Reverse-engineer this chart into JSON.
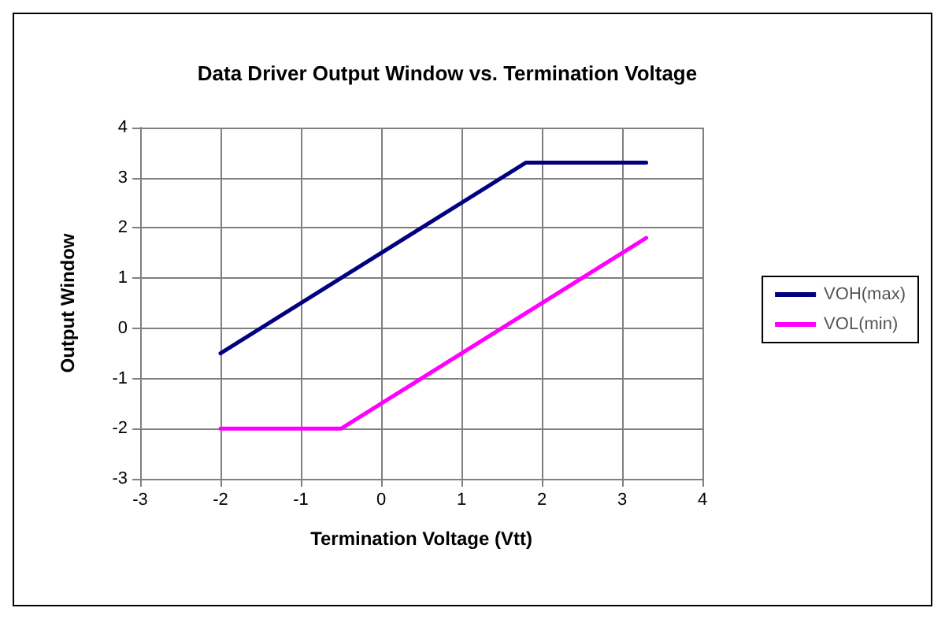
{
  "chart_data": {
    "type": "line",
    "title": "Data Driver Output Window vs. Termination Voltage",
    "xlabel": "Termination Voltage (Vtt)",
    "ylabel": "Output Window",
    "series": [
      {
        "name": "VOH(max)",
        "color": "#000080",
        "x": [
          -2,
          1.8,
          3.3
        ],
        "values": [
          -0.5,
          3.3,
          3.3
        ]
      },
      {
        "name": "VOL(min)",
        "color": "#ff00ff",
        "x": [
          -2,
          -0.5,
          3.3
        ],
        "values": [
          -2,
          -2,
          1.8
        ]
      }
    ],
    "xlim": [
      -3,
      4
    ],
    "xticks": [
      -3,
      -2,
      -1,
      0,
      1,
      2,
      3,
      4
    ],
    "ylim": [
      -3,
      4
    ],
    "yticks": [
      -3,
      -2,
      -1,
      0,
      1,
      2,
      3,
      4
    ],
    "grid": true,
    "legend": "right",
    "marker": "none",
    "line_style": "solid"
  }
}
